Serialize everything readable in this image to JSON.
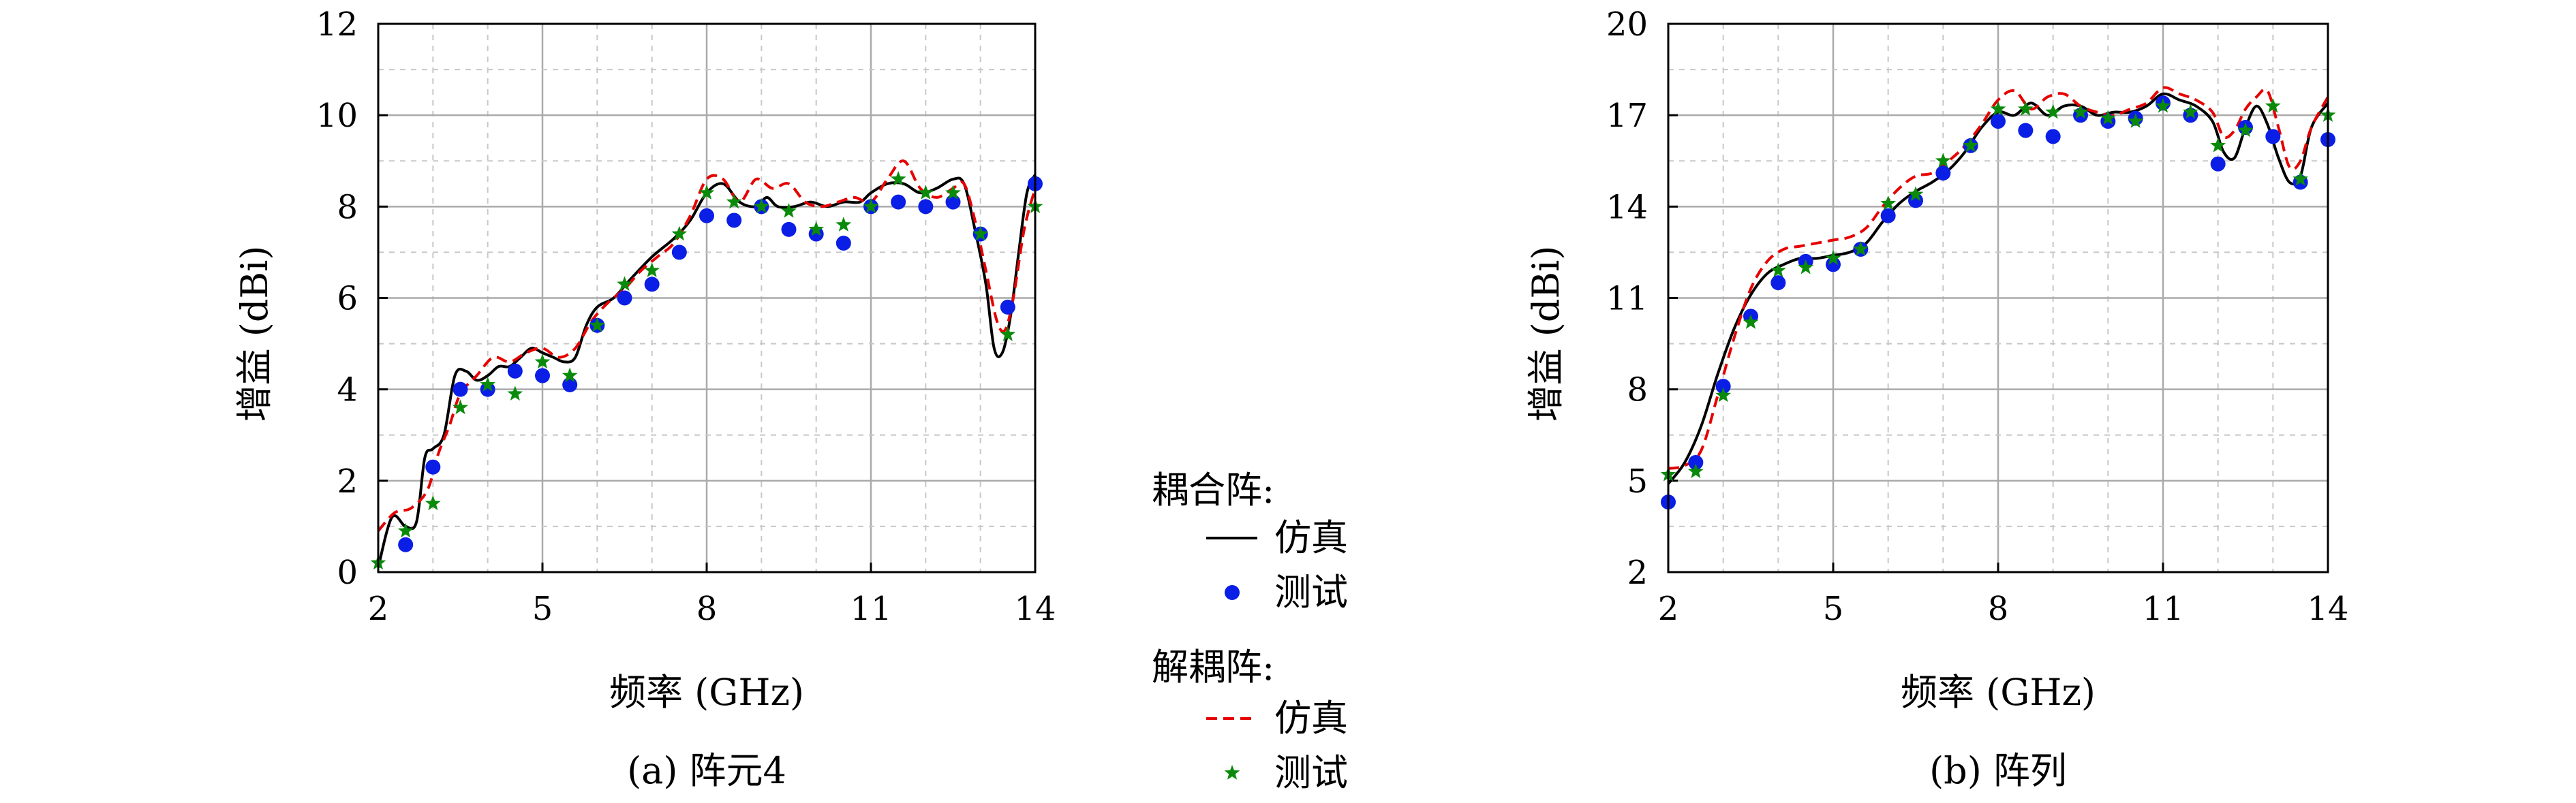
{
  "colors": {
    "coupled_sim": "#000000",
    "coupled_meas": "#0a1ee6",
    "decoupled_sim": "#e60000",
    "decoupled_meas": "#0a8a0a"
  },
  "legend": {
    "coupled_header": "耦合阵:",
    "coupled_sim": "仿真",
    "coupled_meas": "测试",
    "decoupled_header": "解耦阵:",
    "decoupled_sim": "仿真",
    "decoupled_meas": "测试",
    "placement": "center-between"
  },
  "chart_data": [
    {
      "type": "line",
      "caption": "(a) 阵元4",
      "xlabel": "频率 (GHz)",
      "ylabel": "增益 (dBi)",
      "xlim": [
        2,
        14
      ],
      "ylim": [
        0,
        12
      ],
      "xticks": [
        2,
        5,
        8,
        11,
        14
      ],
      "yticks": [
        0,
        2,
        4,
        6,
        8,
        10,
        12
      ],
      "grid": true,
      "series": [
        {
          "name": "耦合阵 仿真",
          "style": "line",
          "x": [
            2,
            2.25,
            2.5,
            2.7,
            2.85,
            3,
            3.2,
            3.4,
            3.6,
            3.8,
            4.0,
            4.2,
            4.4,
            4.6,
            4.8,
            5.0,
            5.2,
            5.4,
            5.6,
            5.8,
            6.0,
            6.3,
            6.6,
            7.0,
            7.4,
            7.7,
            8.0,
            8.3,
            8.6,
            8.9,
            9.1,
            9.3,
            9.6,
            9.9,
            10.2,
            10.5,
            10.8,
            11.0,
            11.3,
            11.6,
            11.9,
            12.2,
            12.5,
            12.7,
            12.9,
            13.1,
            13.25,
            13.4,
            13.55,
            13.7,
            13.85,
            14
          ],
          "y": [
            0.1,
            1.2,
            1.0,
            1.1,
            2.5,
            2.7,
            3.0,
            4.3,
            4.4,
            4.2,
            4.3,
            4.5,
            4.5,
            4.7,
            4.9,
            4.8,
            4.7,
            4.6,
            4.7,
            5.4,
            5.8,
            6.0,
            6.4,
            6.9,
            7.3,
            7.7,
            8.3,
            8.5,
            8.1,
            8.0,
            8.2,
            8.0,
            8.0,
            8.1,
            8.0,
            8.1,
            8.1,
            8.3,
            8.5,
            8.5,
            8.3,
            8.4,
            8.6,
            8.5,
            7.5,
            6.3,
            4.9,
            4.8,
            5.6,
            7.0,
            8.3,
            8.7
          ]
        },
        {
          "name": "解耦阵 仿真",
          "style": "dashed",
          "x": [
            2,
            2.3,
            2.6,
            2.9,
            3.1,
            3.3,
            3.5,
            3.8,
            4.1,
            4.4,
            4.7,
            5.0,
            5.3,
            5.6,
            5.9,
            6.2,
            6.5,
            6.8,
            7.1,
            7.4,
            7.7,
            8.0,
            8.3,
            8.6,
            8.9,
            9.2,
            9.5,
            9.8,
            10.1,
            10.4,
            10.7,
            11.0,
            11.3,
            11.6,
            11.9,
            12.2,
            12.5,
            12.7,
            12.9,
            13.1,
            13.3,
            13.45,
            13.6,
            13.8,
            14
          ],
          "y": [
            0.9,
            1.3,
            1.4,
            1.8,
            2.6,
            3.2,
            3.9,
            4.3,
            4.7,
            4.6,
            4.8,
            4.9,
            4.7,
            4.9,
            5.5,
            5.9,
            6.2,
            6.6,
            6.9,
            7.2,
            7.8,
            8.6,
            8.6,
            8.1,
            8.6,
            8.4,
            8.5,
            8.1,
            8.0,
            8.1,
            8.2,
            8.1,
            8.6,
            9.0,
            8.4,
            8.2,
            8.4,
            8.5,
            7.7,
            6.6,
            5.5,
            5.3,
            6.0,
            7.5,
            8.4
          ]
        },
        {
          "name": "耦合阵 测试",
          "style": "circle",
          "x": [
            2.5,
            3.0,
            3.5,
            4.0,
            4.5,
            5.0,
            5.5,
            6.0,
            6.5,
            7.0,
            7.5,
            8.0,
            8.5,
            9.0,
            9.5,
            10.0,
            10.5,
            11.0,
            11.5,
            12.0,
            12.5,
            13.0,
            13.5,
            14.0
          ],
          "y": [
            0.6,
            2.3,
            4.0,
            4.0,
            4.4,
            4.3,
            4.1,
            5.4,
            6.0,
            6.3,
            7.0,
            7.8,
            7.7,
            8.0,
            7.5,
            7.4,
            7.2,
            8.0,
            8.1,
            8.0,
            8.1,
            7.4,
            5.8,
            8.5
          ]
        },
        {
          "name": "解耦阵 测试",
          "style": "star",
          "x": [
            2.0,
            2.5,
            3.0,
            3.5,
            4.0,
            4.5,
            5.0,
            5.5,
            6.0,
            6.5,
            7.0,
            7.5,
            8.0,
            8.5,
            9.0,
            9.5,
            10.0,
            10.5,
            11.0,
            11.5,
            12.0,
            12.5,
            13.0,
            13.5,
            14.0
          ],
          "y": [
            0.2,
            0.9,
            1.5,
            3.6,
            4.1,
            3.9,
            4.6,
            4.3,
            5.4,
            6.3,
            6.6,
            7.4,
            8.3,
            8.1,
            8.0,
            7.9,
            7.5,
            7.6,
            8.0,
            8.6,
            8.3,
            8.3,
            7.4,
            5.2,
            8.0
          ]
        }
      ]
    },
    {
      "type": "line",
      "caption": "(b) 阵列",
      "xlabel": "频率 (GHz)",
      "ylabel": "增益 (dBi)",
      "xlim": [
        2,
        14
      ],
      "ylim": [
        2,
        20
      ],
      "xticks": [
        2,
        5,
        8,
        11,
        14
      ],
      "yticks": [
        2,
        5,
        8,
        11,
        14,
        17,
        20
      ],
      "grid": true,
      "series": [
        {
          "name": "耦合阵 仿真",
          "style": "line",
          "x": [
            2,
            2.3,
            2.6,
            2.9,
            3.2,
            3.5,
            3.8,
            4.1,
            4.4,
            4.7,
            5.0,
            5.3,
            5.6,
            5.9,
            6.2,
            6.5,
            6.8,
            7.1,
            7.4,
            7.7,
            8.0,
            8.3,
            8.6,
            8.9,
            9.2,
            9.5,
            9.8,
            10.1,
            10.4,
            10.7,
            11.0,
            11.3,
            11.6,
            11.9,
            12.1,
            12.3,
            12.5,
            12.7,
            12.9,
            13.1,
            13.3,
            13.5,
            13.7,
            14
          ],
          "y": [
            4.9,
            5.6,
            6.8,
            8.5,
            10.0,
            11.1,
            11.8,
            12.1,
            12.3,
            12.3,
            12.4,
            12.5,
            12.8,
            13.5,
            14.1,
            14.5,
            14.8,
            15.2,
            15.8,
            16.6,
            17.1,
            17.0,
            17.4,
            17.0,
            17.3,
            17.3,
            17.0,
            17.1,
            17.1,
            17.3,
            17.7,
            17.5,
            17.3,
            16.8,
            15.8,
            15.6,
            16.6,
            17.3,
            16.7,
            15.6,
            14.8,
            15.0,
            16.6,
            17.4
          ]
        },
        {
          "name": "解耦阵 仿真",
          "style": "dashed",
          "x": [
            2,
            2.3,
            2.6,
            2.9,
            3.2,
            3.5,
            3.8,
            4.1,
            4.4,
            4.7,
            5.0,
            5.3,
            5.6,
            5.9,
            6.2,
            6.5,
            6.8,
            7.1,
            7.4,
            7.7,
            8.0,
            8.3,
            8.6,
            8.9,
            9.2,
            9.5,
            9.8,
            10.1,
            10.4,
            10.7,
            11.0,
            11.3,
            11.6,
            11.9,
            12.1,
            12.3,
            12.5,
            12.7,
            12.9,
            13.1,
            13.3,
            13.5,
            13.7,
            14
          ],
          "y": [
            5.4,
            5.5,
            6.0,
            7.8,
            9.7,
            11.3,
            12.2,
            12.6,
            12.7,
            12.8,
            12.9,
            13.0,
            13.3,
            14.0,
            14.6,
            15.0,
            15.1,
            15.5,
            16.0,
            16.7,
            17.5,
            17.8,
            17.2,
            17.6,
            17.7,
            17.3,
            17.1,
            17.0,
            17.2,
            17.4,
            17.9,
            17.7,
            17.5,
            17.1,
            16.3,
            16.5,
            17.2,
            17.6,
            17.8,
            16.6,
            15.3,
            15.5,
            16.6,
            17.6
          ]
        },
        {
          "name": "耦合阵 测试",
          "style": "circle",
          "x": [
            2.0,
            2.5,
            3.0,
            3.5,
            4.0,
            4.5,
            5.0,
            5.5,
            6.0,
            6.5,
            7.0,
            7.5,
            8.0,
            8.5,
            9.0,
            9.5,
            10.0,
            10.5,
            11.0,
            11.5,
            12.0,
            12.5,
            13.0,
            13.5,
            14.0
          ],
          "y": [
            4.3,
            5.6,
            8.1,
            10.4,
            11.5,
            12.2,
            12.1,
            12.6,
            13.7,
            14.2,
            15.1,
            16.0,
            16.8,
            16.5,
            16.3,
            17.0,
            16.8,
            16.9,
            17.4,
            17.0,
            15.4,
            16.6,
            16.3,
            14.8,
            16.2
          ]
        },
        {
          "name": "解耦阵 测试",
          "style": "star",
          "x": [
            2.0,
            2.5,
            3.0,
            3.5,
            4.0,
            4.5,
            5.0,
            5.5,
            6.0,
            6.5,
            7.0,
            7.5,
            8.0,
            8.5,
            9.0,
            9.5,
            10.0,
            10.5,
            11.0,
            11.5,
            12.0,
            12.5,
            13.0,
            13.5,
            14.0
          ],
          "y": [
            5.2,
            5.3,
            7.8,
            10.2,
            11.9,
            12.0,
            12.3,
            12.6,
            14.1,
            14.4,
            15.5,
            16.0,
            17.2,
            17.2,
            17.1,
            17.1,
            16.9,
            16.8,
            17.3,
            17.1,
            16.0,
            16.5,
            17.3,
            14.9,
            17.0
          ]
        }
      ]
    }
  ]
}
